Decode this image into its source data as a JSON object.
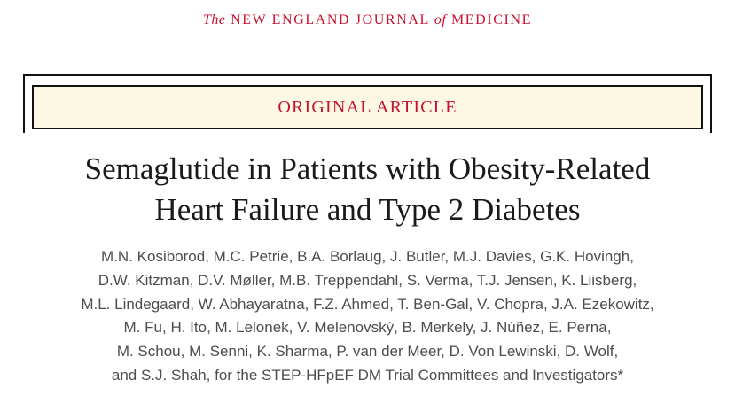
{
  "journal": {
    "prefix": "The",
    "name_part1": "NEW ENGLAND JOURNAL",
    "connector": "of",
    "name_part2": "MEDICINE"
  },
  "article_type": "ORIGINAL ARTICLE",
  "title_lines": [
    "Semaglutide in Patients with Obesity-Related",
    "Heart Failure and Type 2 Diabetes"
  ],
  "author_lines": [
    "M.N. Kosiborod, M.C. Petrie, B.A. Borlaug, J. Butler, M.J. Davies, G.K. Hovingh,",
    "D.W. Kitzman, D.V. Møller, M.B. Treppendahl, S. Verma, T.J. Jensen, K. Liisberg,",
    "M.L. Lindegaard, W. Abhayaratna, F.Z. Ahmed, T. Ben-Gal, V. Chopra, J.A. Ezekowitz,",
    "M. Fu, H. Ito, M. Lelonek, V. Melenovský, B. Merkely, J. Núñez, E. Perna,",
    "M. Schou, M. Senni, K. Sharma, P. van der Meer, D. Von Lewinski, D. Wolf,",
    "and S.J. Shah, for the STEP-HFpEF DM Trial Committees and Investigators*"
  ]
}
